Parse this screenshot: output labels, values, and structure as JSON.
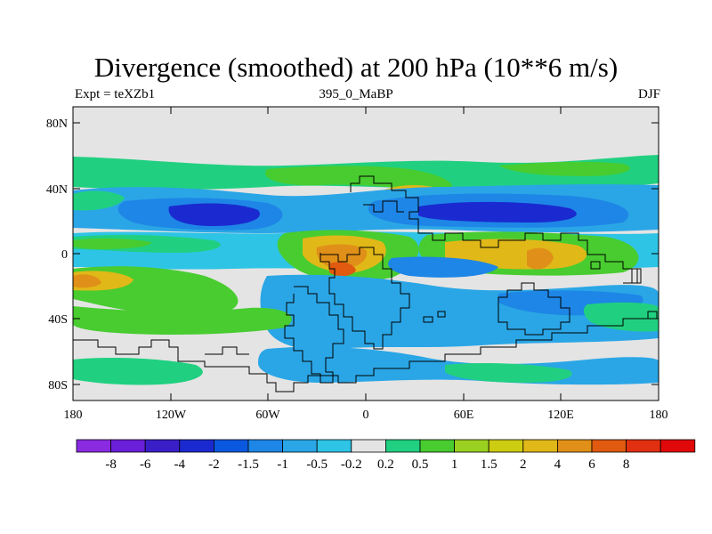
{
  "title": "Divergence (smoothed) at 200 hPa (10**6 m/s)",
  "subtitle_left": "Expt = teXZb1",
  "subtitle_center": "395_0_MaBP",
  "subtitle_right": "DJF",
  "lat_labels": [
    "80N",
    "40N",
    "0",
    "40S",
    "80S"
  ],
  "lon_labels": [
    "180",
    "120W",
    "60W",
    "0",
    "60E",
    "120E",
    "180"
  ],
  "colorbar": {
    "colors": [
      "#8a2be2",
      "#6a1fd8",
      "#3a1fc8",
      "#1a2ad0",
      "#0a58e0",
      "#1e86e6",
      "#2aa6e6",
      "#2ec4e6",
      "#e4e4e4",
      "#20d080",
      "#48cc30",
      "#9ad020",
      "#cccc10",
      "#e0b818",
      "#e09018",
      "#e05a10",
      "#e03010",
      "#e00808"
    ],
    "labels": [
      "-8",
      "-6",
      "-4",
      "-2",
      "-1.5",
      "-1",
      "-0.5",
      "-0.2",
      "0.2",
      "0.5",
      "1",
      "1.5",
      "2",
      "4",
      "6",
      "8"
    ]
  }
}
